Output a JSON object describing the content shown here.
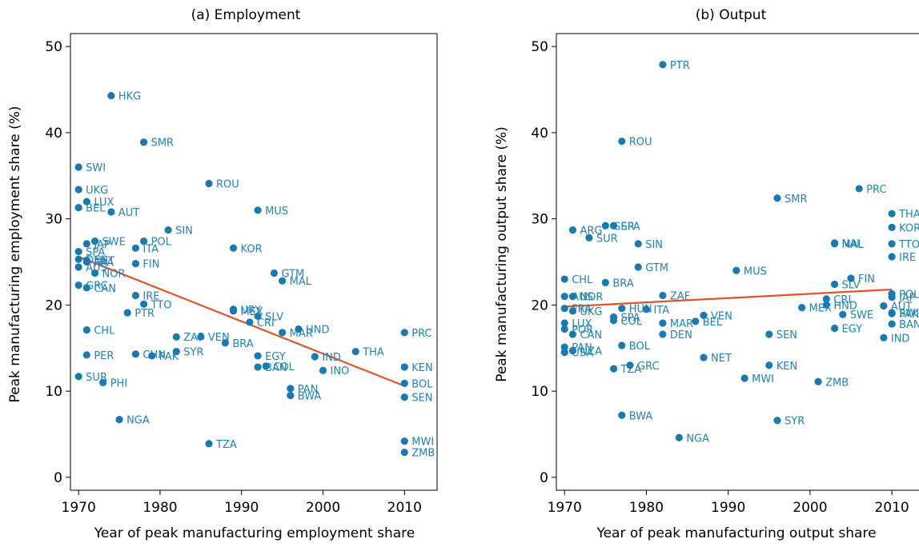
{
  "colors": {
    "point": "#1a7ab0",
    "label": "#1f83b4",
    "fit": "#e0542a",
    "axis": "#000000"
  },
  "chart_data": [
    {
      "type": "scatter",
      "title": "(a) Employment",
      "xlabel": "Year of peak manufacturing employment share",
      "ylabel": "Peak manufacturing employment share (%)",
      "xlim": [
        1969,
        2014
      ],
      "ylim": [
        -1.5,
        51.5
      ],
      "xticks": [
        1970,
        1980,
        1990,
        2000,
        2010
      ],
      "yticks": [
        0,
        10,
        20,
        30,
        40,
        50
      ],
      "grid": false,
      "fit_line": {
        "x": [
          1970,
          2010
        ],
        "y": [
          25.6,
          10.6
        ]
      },
      "points": [
        {
          "label": "HKG",
          "x": 1974,
          "y": 44.3
        },
        {
          "label": "SMR",
          "x": 1978,
          "y": 38.9
        },
        {
          "label": "SWI",
          "x": 1970,
          "y": 36.0
        },
        {
          "label": "UKG",
          "x": 1970,
          "y": 33.4
        },
        {
          "label": "LUX",
          "x": 1971,
          "y": 32.0
        },
        {
          "label": "BEL",
          "x": 1970,
          "y": 31.3
        },
        {
          "label": "AUT",
          "x": 1974,
          "y": 30.8
        },
        {
          "label": "ROU",
          "x": 1986,
          "y": 34.1
        },
        {
          "label": "MUS",
          "x": 1992,
          "y": 31.0
        },
        {
          "label": "SIN",
          "x": 1981,
          "y": 28.7
        },
        {
          "label": "SWE",
          "x": 1972,
          "y": 27.4
        },
        {
          "label": "JAP",
          "x": 1971,
          "y": 27.1
        },
        {
          "label": "POL",
          "x": 1978,
          "y": 27.4
        },
        {
          "label": "ITA",
          "x": 1977,
          "y": 26.6
        },
        {
          "label": "SPA",
          "x": 1970,
          "y": 26.2
        },
        {
          "label": "KOR",
          "x": 1989,
          "y": 26.6
        },
        {
          "label": "DEN",
          "x": 1970,
          "y": 25.3
        },
        {
          "label": "NET",
          "x": 1971,
          "y": 25.2
        },
        {
          "label": "FRA",
          "x": 1971,
          "y": 25.0
        },
        {
          "label": "FIN",
          "x": 1977,
          "y": 24.8
        },
        {
          "label": "AUS",
          "x": 1970,
          "y": 24.4
        },
        {
          "label": "NOR",
          "x": 1972,
          "y": 23.7
        },
        {
          "label": "GTM",
          "x": 1994,
          "y": 23.7
        },
        {
          "label": "MAL",
          "x": 1995,
          "y": 22.8
        },
        {
          "label": "GRC",
          "x": 1970,
          "y": 22.3
        },
        {
          "label": "CAN",
          "x": 1971,
          "y": 22.0
        },
        {
          "label": "IRE",
          "x": 1977,
          "y": 21.1
        },
        {
          "label": "TTO",
          "x": 1978,
          "y": 20.1
        },
        {
          "label": "PTR",
          "x": 1976,
          "y": 19.1
        },
        {
          "label": "URY",
          "x": 1989,
          "y": 19.5
        },
        {
          "label": "MEX",
          "x": 1989,
          "y": 19.3
        },
        {
          "label": "SLV",
          "x": 1992,
          "y": 18.7
        },
        {
          "label": "CRI",
          "x": 1991,
          "y": 18.0
        },
        {
          "label": "CHL",
          "x": 1971,
          "y": 17.1
        },
        {
          "label": "HND",
          "x": 1997,
          "y": 17.2
        },
        {
          "label": "MAR",
          "x": 1995,
          "y": 16.8
        },
        {
          "label": "PRC",
          "x": 2010,
          "y": 16.8
        },
        {
          "label": "ZAF",
          "x": 1982,
          "y": 16.3
        },
        {
          "label": "VEN",
          "x": 1985,
          "y": 16.3
        },
        {
          "label": "BRA",
          "x": 1988,
          "y": 15.6
        },
        {
          "label": "SYR",
          "x": 1982,
          "y": 14.6
        },
        {
          "label": "THA",
          "x": 2004,
          "y": 14.6
        },
        {
          "label": "PER",
          "x": 1971,
          "y": 14.2
        },
        {
          "label": "CHN",
          "x": 1977,
          "y": 14.3
        },
        {
          "label": "PAK",
          "x": 1979,
          "y": 14.1
        },
        {
          "label": "EGY",
          "x": 1992,
          "y": 14.1
        },
        {
          "label": "IND",
          "x": 1999,
          "y": 14.0
        },
        {
          "label": "BAN",
          "x": 1992,
          "y": 12.8
        },
        {
          "label": "COL",
          "x": 1993,
          "y": 12.9
        },
        {
          "label": "INO",
          "x": 2000,
          "y": 12.4
        },
        {
          "label": "KEN",
          "x": 2010,
          "y": 12.8
        },
        {
          "label": "SUR",
          "x": 1970,
          "y": 11.7
        },
        {
          "label": "PHI",
          "x": 1973,
          "y": 11.0
        },
        {
          "label": "BOL",
          "x": 2010,
          "y": 10.9
        },
        {
          "label": "PAN",
          "x": 1996,
          "y": 10.3
        },
        {
          "label": "BWA",
          "x": 1996,
          "y": 9.5
        },
        {
          "label": "SEN",
          "x": 2010,
          "y": 9.3
        },
        {
          "label": "NGA",
          "x": 1975,
          "y": 6.7
        },
        {
          "label": "TZA",
          "x": 1986,
          "y": 3.9
        },
        {
          "label": "MWI",
          "x": 2010,
          "y": 4.2
        },
        {
          "label": "ZMB",
          "x": 2010,
          "y": 2.9
        }
      ]
    },
    {
      "type": "scatter",
      "title": "(b) Output",
      "xlabel": "Year of peak manufacturing output share",
      "ylabel": "Peak manufacturing output share (%)",
      "xlim": [
        1969,
        2014
      ],
      "ylim": [
        -1.5,
        51.5
      ],
      "xticks": [
        1970,
        1980,
        1990,
        2000,
        2010
      ],
      "yticks": [
        0,
        10,
        20,
        30,
        40,
        50
      ],
      "grid": false,
      "fit_line": {
        "x": [
          1970,
          2010
        ],
        "y": [
          19.8,
          21.8
        ]
      },
      "points": [
        {
          "label": "PTR",
          "x": 1982,
          "y": 47.9
        },
        {
          "label": "ROU",
          "x": 1977,
          "y": 39.0
        },
        {
          "label": "PRC",
          "x": 2006,
          "y": 33.5
        },
        {
          "label": "SMR",
          "x": 1996,
          "y": 32.4
        },
        {
          "label": "THA",
          "x": 2010,
          "y": 30.6
        },
        {
          "label": "GER",
          "x": 1975,
          "y": 29.2
        },
        {
          "label": "SPA",
          "x": 1976,
          "y": 29.2
        },
        {
          "label": "KOR",
          "x": 2010,
          "y": 29.0
        },
        {
          "label": "ARG",
          "x": 1971,
          "y": 28.7
        },
        {
          "label": "SUR",
          "x": 1973,
          "y": 27.8
        },
        {
          "label": "NAI",
          "x": 2003,
          "y": 27.2
        },
        {
          "label": "MAL",
          "x": 2003,
          "y": 27.1
        },
        {
          "label": "SIN",
          "x": 1979,
          "y": 27.1
        },
        {
          "label": "TTO",
          "x": 2010,
          "y": 27.1
        },
        {
          "label": "IRE",
          "x": 2010,
          "y": 25.6
        },
        {
          "label": "GTM",
          "x": 1979,
          "y": 24.4
        },
        {
          "label": "MUS",
          "x": 1991,
          "y": 24.0
        },
        {
          "label": "FIN",
          "x": 2005,
          "y": 23.1
        },
        {
          "label": "CHL",
          "x": 1970,
          "y": 23.0
        },
        {
          "label": "BRA",
          "x": 1975,
          "y": 22.6
        },
        {
          "label": "SLV",
          "x": 2003,
          "y": 22.4
        },
        {
          "label": "ZAF",
          "x": 1982,
          "y": 21.1
        },
        {
          "label": "AUS",
          "x": 1970,
          "y": 21.0
        },
        {
          "label": "NOR",
          "x": 1971,
          "y": 21.0
        },
        {
          "label": "POL",
          "x": 2010,
          "y": 21.3
        },
        {
          "label": "JAP",
          "x": 2010,
          "y": 20.9
        },
        {
          "label": "CRI",
          "x": 2002,
          "y": 20.7
        },
        {
          "label": "HND",
          "x": 2002,
          "y": 20.0
        },
        {
          "label": "MEX",
          "x": 1999,
          "y": 19.7
        },
        {
          "label": "HUN",
          "x": 1977,
          "y": 19.6
        },
        {
          "label": "ITA",
          "x": 1980,
          "y": 19.5
        },
        {
          "label": "AUT",
          "x": 2009,
          "y": 19.9
        },
        {
          "label": "FRA",
          "x": 1970,
          "y": 19.6
        },
        {
          "label": "UKG",
          "x": 1971,
          "y": 19.3
        },
        {
          "label": "SWE",
          "x": 2004,
          "y": 18.9
        },
        {
          "label": "SWI",
          "x": 2010,
          "y": 19.1
        },
        {
          "label": "PAK",
          "x": 2010,
          "y": 19.0
        },
        {
          "label": "VEN",
          "x": 1987,
          "y": 18.8
        },
        {
          "label": "SPA",
          "x": 1976,
          "y": 18.6
        },
        {
          "label": "COL",
          "x": 1976,
          "y": 18.2
        },
        {
          "label": "BEL",
          "x": 1986,
          "y": 18.1
        },
        {
          "label": "MAR",
          "x": 1982,
          "y": 17.9
        },
        {
          "label": "LUX",
          "x": 1970,
          "y": 17.9
        },
        {
          "label": "BAN",
          "x": 2010,
          "y": 17.8
        },
        {
          "label": "POR",
          "x": 1970,
          "y": 17.2
        },
        {
          "label": "EGY",
          "x": 2003,
          "y": 17.3
        },
        {
          "label": "CAN",
          "x": 1971,
          "y": 16.6
        },
        {
          "label": "DEN",
          "x": 1982,
          "y": 16.6
        },
        {
          "label": "SEN",
          "x": 1995,
          "y": 16.6
        },
        {
          "label": "IND",
          "x": 2009,
          "y": 16.2
        },
        {
          "label": "BOL",
          "x": 1977,
          "y": 15.3
        },
        {
          "label": "PAN",
          "x": 1970,
          "y": 15.1
        },
        {
          "label": "NZA",
          "x": 1971,
          "y": 14.7
        },
        {
          "label": "USA",
          "x": 1970,
          "y": 14.5
        },
        {
          "label": "NET",
          "x": 1987,
          "y": 13.9
        },
        {
          "label": "GRC",
          "x": 1978,
          "y": 13.0
        },
        {
          "label": "KEN",
          "x": 1995,
          "y": 13.0
        },
        {
          "label": "TZA",
          "x": 1976,
          "y": 12.6
        },
        {
          "label": "MWI",
          "x": 1992,
          "y": 11.5
        },
        {
          "label": "ZMB",
          "x": 2001,
          "y": 11.1
        },
        {
          "label": "BWA",
          "x": 1977,
          "y": 7.2
        },
        {
          "label": "SYR",
          "x": 1996,
          "y": 6.6
        },
        {
          "label": "NGA",
          "x": 1984,
          "y": 4.6
        }
      ]
    }
  ]
}
